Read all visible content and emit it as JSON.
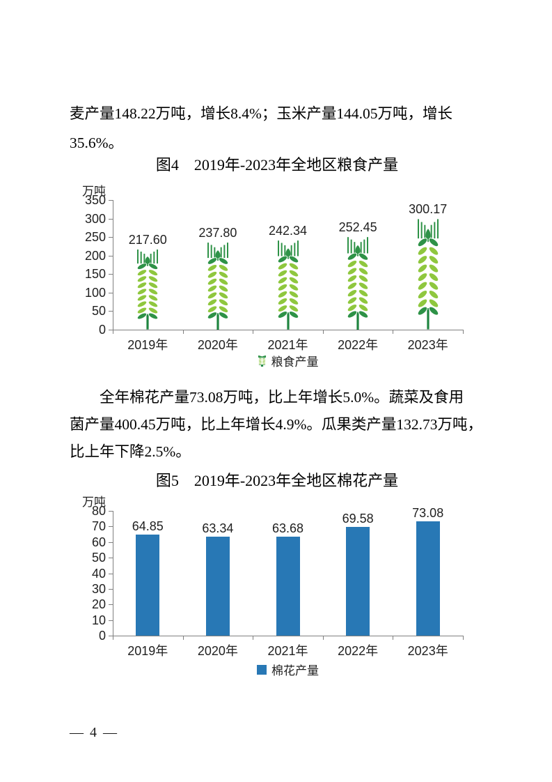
{
  "page": {
    "number_label": "— 4 —"
  },
  "paragraphs": {
    "top": {
      "lines": [
        "麦产量148.22万吨，增长8.4%；玉米产量144.05万吨，增长",
        "35.6%。"
      ]
    },
    "middle": {
      "lines": [
        "全年棉花产量73.08万吨，比上年增长5.0%。蔬菜及食用",
        "菌产量400.45万吨，比上年增长4.9%。瓜果类产量132.73万吨，",
        "比上年下降2.5%。"
      ]
    }
  },
  "chart_data": [
    {
      "id": "figure4",
      "type": "bar",
      "style": "wheat-pictogram",
      "title": "图4　2019年-2023年全地区粮食产量",
      "unit_label": "万吨",
      "categories": [
        "2019年",
        "2020年",
        "2021年",
        "2022年",
        "2023年"
      ],
      "values": [
        217.6,
        237.8,
        242.34,
        252.45,
        300.17
      ],
      "value_labels": [
        "217.60",
        "237.80",
        "242.34",
        "252.45",
        "300.17"
      ],
      "ylim": [
        0,
        350
      ],
      "yticks": [
        0,
        50,
        100,
        150,
        200,
        250,
        300,
        350
      ],
      "grid": false,
      "legend": "粮食产量",
      "legend_position": "bottom",
      "colors": {
        "leaf_light": "#8FC73E",
        "leaf_dark": "#2E9247",
        "stem": "#1F8540"
      }
    },
    {
      "id": "figure5",
      "type": "bar",
      "title": "图5　2019年-2023年全地区棉花产量",
      "unit_label": "万吨",
      "categories": [
        "2019年",
        "2020年",
        "2021年",
        "2022年",
        "2023年"
      ],
      "values": [
        64.85,
        63.34,
        63.68,
        69.58,
        73.08
      ],
      "value_labels": [
        "64.85",
        "63.34",
        "63.68",
        "69.58",
        "73.08"
      ],
      "ylim": [
        0,
        80
      ],
      "yticks": [
        0,
        10,
        20,
        30,
        40,
        50,
        60,
        70,
        80
      ],
      "grid": false,
      "legend": "棉花产量",
      "legend_position": "bottom",
      "colors": {
        "bar": "#2878B5"
      }
    }
  ]
}
